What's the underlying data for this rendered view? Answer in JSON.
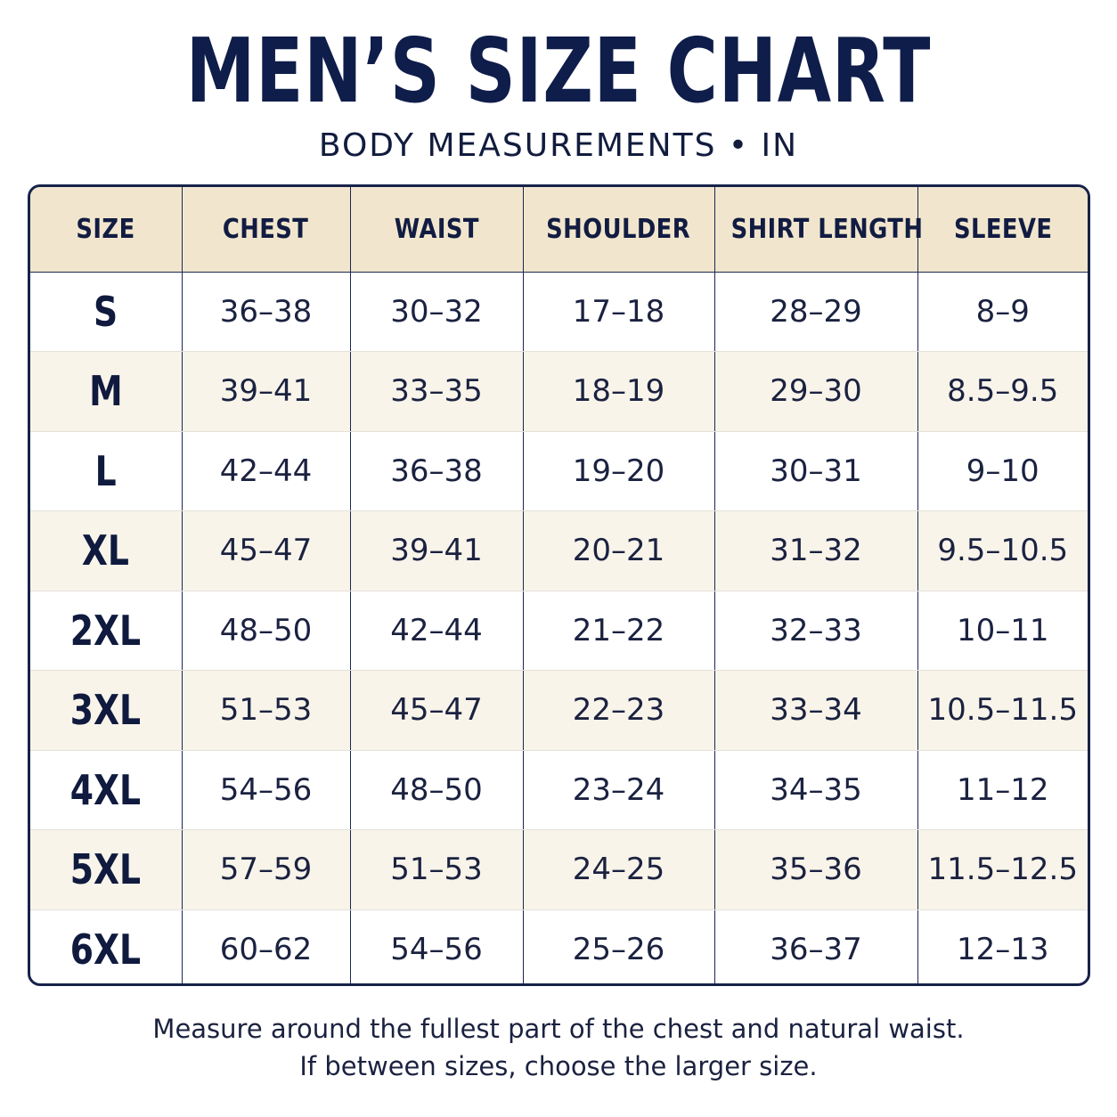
{
  "header": {
    "title": "MEN’S SIZE CHART",
    "subtitle": "BODY MEASUREMENTS • IN"
  },
  "table": {
    "columns": [
      "SIZE",
      "CHEST",
      "WAIST",
      "SHOULDER",
      "SHIRT LENGTH",
      "SLEEVE"
    ],
    "rows": [
      [
        "S",
        "36–38",
        "30–32",
        "17–18",
        "28–29",
        "8–9"
      ],
      [
        "M",
        "39–41",
        "33–35",
        "18–19",
        "29–30",
        "8.5–9.5"
      ],
      [
        "L",
        "42–44",
        "36–38",
        "19–20",
        "30–31",
        "9–10"
      ],
      [
        "XL",
        "45–47",
        "39–41",
        "20–21",
        "31–32",
        "9.5–10.5"
      ],
      [
        "2XL",
        "48–50",
        "42–44",
        "21–22",
        "32–33",
        "10–11"
      ],
      [
        "3XL",
        "51–53",
        "45–47",
        "22–23",
        "33–34",
        "10.5–11.5"
      ],
      [
        "4XL",
        "54–56",
        "48–50",
        "23–24",
        "34–35",
        "11–12"
      ],
      [
        "5XL",
        "57–59",
        "51–53",
        "24–25",
        "35–36",
        "11.5–12.5"
      ],
      [
        "6XL",
        "60–62",
        "54–56",
        "25–26",
        "36–37",
        "12–13"
      ]
    ]
  },
  "footer": {
    "note_line1": "Measure around the fullest part of the chest and natural waist.",
    "note_line2": "If between sizes, choose the larger size."
  },
  "colors": {
    "navy": "#0f1d4a",
    "header_fill": "#f1e6cd",
    "stripe_fill": "#f8f4ea"
  }
}
